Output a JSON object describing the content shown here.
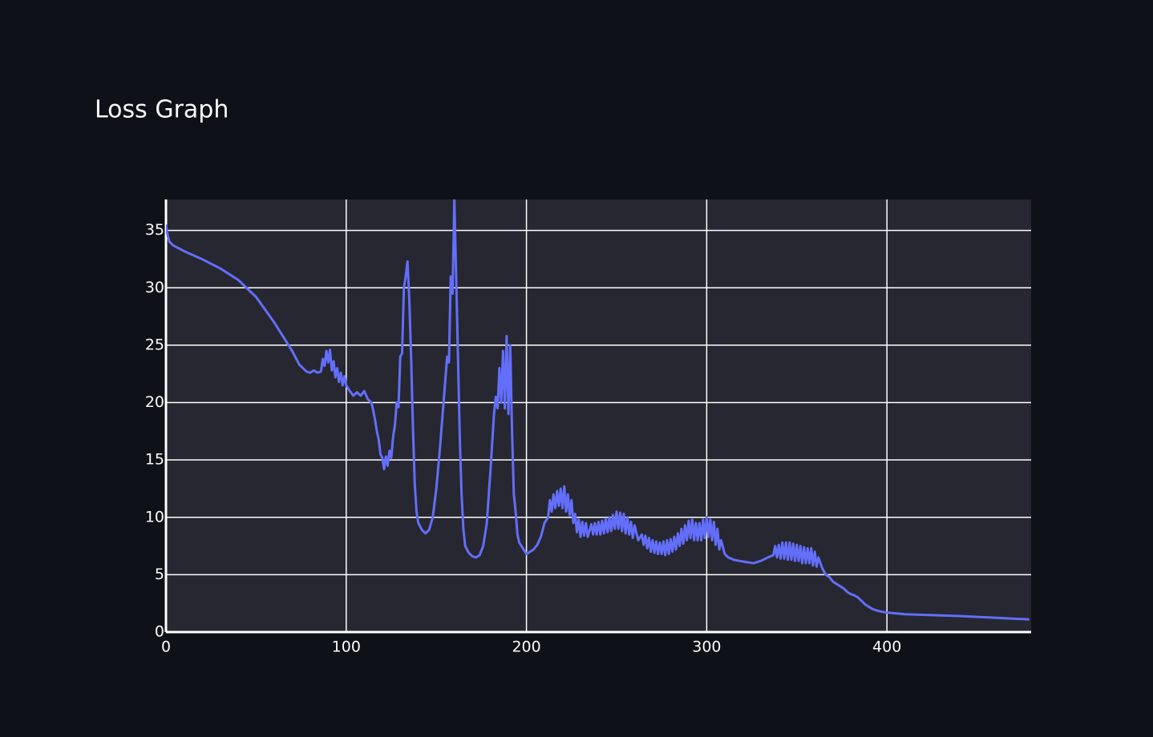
{
  "chart_data": {
    "type": "line",
    "title": "Loss Graph",
    "color": "#636efa",
    "grid": true,
    "xlim": [
      0,
      480
    ],
    "ylim": [
      0,
      37.7
    ],
    "xticks": [
      0,
      100,
      200,
      300,
      400
    ],
    "yticks": [
      0,
      5,
      10,
      15,
      20,
      25,
      30,
      35
    ],
    "x": [
      0,
      1,
      2,
      4,
      10,
      20,
      30,
      40,
      50,
      60,
      70,
      74,
      78,
      80,
      82,
      84,
      86,
      87,
      88,
      89,
      90,
      91,
      92,
      93,
      94,
      95,
      96,
      97,
      98,
      99,
      100,
      102,
      104,
      106,
      108,
      110,
      112,
      114,
      115,
      116,
      117,
      118,
      119,
      120,
      121,
      122,
      123,
      124,
      125,
      126,
      127,
      128,
      129,
      130,
      131,
      132,
      133,
      134,
      135,
      136,
      137,
      138,
      139,
      140,
      142,
      144,
      146,
      148,
      150,
      152,
      154,
      156,
      157,
      158,
      159,
      160,
      161,
      162,
      163,
      164,
      165,
      166,
      168,
      170,
      172,
      174,
      176,
      178,
      180,
      182,
      183,
      184,
      185,
      186,
      187,
      188,
      189,
      190,
      191,
      192,
      193,
      194,
      195,
      196,
      198,
      200,
      202,
      204,
      206,
      208,
      210,
      212,
      213,
      214,
      215,
      216,
      217,
      218,
      219,
      220,
      221,
      222,
      223,
      224,
      225,
      226,
      227,
      228,
      229,
      230,
      231,
      232,
      233,
      234,
      236,
      237,
      238,
      239,
      240,
      241,
      242,
      243,
      244,
      245,
      246,
      247,
      248,
      249,
      250,
      251,
      252,
      253,
      254,
      255,
      256,
      257,
      258,
      259,
      260,
      262,
      264,
      265,
      266,
      267,
      268,
      269,
      270,
      271,
      272,
      273,
      274,
      275,
      276,
      277,
      278,
      279,
      280,
      281,
      282,
      283,
      284,
      285,
      286,
      287,
      288,
      289,
      290,
      291,
      292,
      293,
      294,
      295,
      296,
      297,
      298,
      299,
      300,
      301,
      302,
      303,
      304,
      305,
      306,
      307,
      308,
      310,
      312,
      315,
      318,
      322,
      326,
      330,
      334,
      337,
      338,
      339,
      340,
      341,
      342,
      343,
      344,
      345,
      346,
      347,
      348,
      349,
      350,
      351,
      352,
      353,
      354,
      355,
      356,
      357,
      358,
      359,
      360,
      361,
      362,
      364,
      366,
      368,
      370,
      372,
      374,
      376,
      378,
      380,
      382,
      384,
      386,
      388,
      390,
      392,
      395,
      398,
      400,
      410,
      420,
      440,
      460,
      479
    ],
    "values": [
      35.5,
      34.5,
      34,
      33.7,
      33.2,
      32.5,
      31.7,
      30.7,
      29.2,
      27,
      24.5,
      23.3,
      22.7,
      22.6,
      22.8,
      22.6,
      22.7,
      23.8,
      23.2,
      24.5,
      23.5,
      24.6,
      22.8,
      23.6,
      22.2,
      23,
      21.8,
      22.6,
      21.5,
      22.3,
      21.5,
      21,
      20.6,
      20.9,
      20.6,
      21,
      20.3,
      20,
      19.3,
      18.5,
      17.5,
      16.8,
      15.5,
      15.2,
      14.2,
      15.3,
      14.5,
      15.8,
      15.2,
      17,
      18,
      20,
      19.6,
      24,
      24.3,
      30,
      31,
      32.3,
      29,
      24,
      18,
      13,
      10.5,
      9.5,
      8.9,
      8.6,
      8.9,
      10,
      12.5,
      16,
      20,
      24,
      23.5,
      31,
      29.5,
      37.7,
      31,
      24,
      17,
      12,
      9,
      7.5,
      6.9,
      6.6,
      6.5,
      6.7,
      7.5,
      9.5,
      14,
      19,
      20.5,
      19.5,
      23,
      20,
      24.5,
      19.5,
      25.8,
      19,
      25,
      17.5,
      12,
      10.5,
      8.5,
      7.8,
      7.3,
      6.8,
      7,
      7.2,
      7.6,
      8.3,
      9.5,
      10,
      11.5,
      10.5,
      12,
      10.8,
      12.3,
      11,
      12.5,
      10.8,
      12.7,
      10.5,
      12,
      10.2,
      11.5,
      9.5,
      10.3,
      8.7,
      9.8,
      8.3,
      9.6,
      8.4,
      9.5,
      8.3,
      9.4,
      8.5,
      9.5,
      8.5,
      9.6,
      8.5,
      9.7,
      8.6,
      9.9,
      8.7,
      10,
      8.8,
      10.2,
      9,
      10.5,
      9,
      10.4,
      8.8,
      10.3,
      8.6,
      10,
      8.5,
      9.6,
      8.2,
      9.3,
      8,
      8.5,
      7.6,
      8.4,
      7.3,
      8.2,
      7,
      8,
      6.9,
      7.9,
      6.8,
      7.8,
      6.8,
      7.9,
      6.7,
      8,
      6.8,
      8.1,
      7,
      8.3,
      7.2,
      8.6,
      7.5,
      9,
      7.7,
      9.3,
      8,
      9.7,
      8.2,
      9.8,
      8,
      9.5,
      8,
      9.5,
      8,
      9.8,
      8.2,
      10,
      8.3,
      9.8,
      8,
      9.6,
      7.6,
      9,
      7.2,
      8,
      6.8,
      6.5,
      6.3,
      6.2,
      6.1,
      6,
      6.2,
      6.5,
      6.7,
      7.5,
      6.5,
      7.6,
      6.4,
      7.8,
      6.4,
      7.8,
      6.3,
      7.8,
      6.3,
      7.7,
      6.2,
      7.6,
      6.2,
      7.5,
      6,
      7.4,
      6,
      7.3,
      6,
      7.3,
      5.8,
      7,
      5.7,
      6.5,
      5.6,
      5,
      4.8,
      4.4,
      4.2,
      4,
      3.8,
      3.5,
      3.3,
      3.2,
      3,
      2.7,
      2.4,
      2.2,
      2,
      1.85,
      1.75,
      1.7,
      1.55,
      1.5,
      1.4,
      1.25,
      1.1
    ]
  }
}
